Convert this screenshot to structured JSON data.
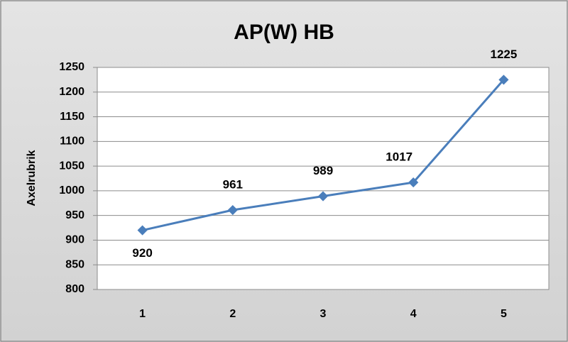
{
  "chart_data": {
    "type": "line",
    "title": "AP(W) HB",
    "y_label": "Axelrubrik",
    "categories": [
      "1",
      "2",
      "3",
      "4",
      "5"
    ],
    "values": [
      920,
      961,
      989,
      1017,
      1225
    ],
    "color": "#4a7ebb",
    "ylim": [
      800,
      1250
    ],
    "yticks": [
      800,
      850,
      900,
      950,
      1000,
      1050,
      1100,
      1150,
      1200,
      1250
    ],
    "grid": true
  }
}
